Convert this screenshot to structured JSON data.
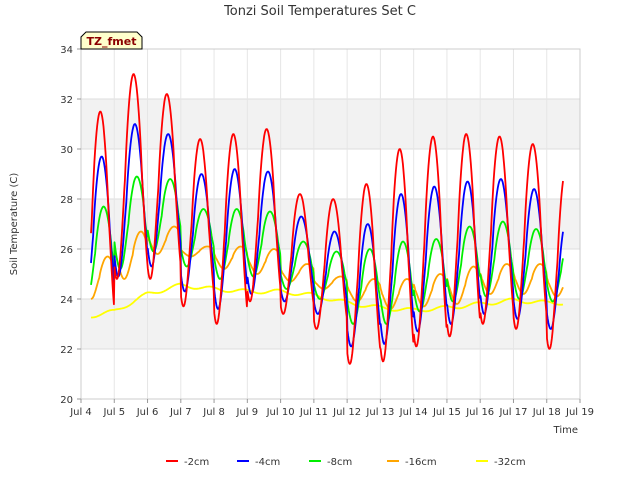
{
  "chart_data": {
    "type": "line",
    "title": "Tonzi Soil Temperatures Set C",
    "xlabel": "Time",
    "ylabel": "Soil Temperature (C)",
    "badge": "TZ_fmet",
    "xlim": [
      4,
      19
    ],
    "ylim": [
      20,
      34
    ],
    "x_ticks": [
      4,
      5,
      6,
      7,
      8,
      9,
      10,
      11,
      12,
      13,
      14,
      15,
      16,
      17,
      18,
      19
    ],
    "x_tick_labels": [
      "Jul 4",
      "Jul 5",
      "Jul 6",
      "Jul 7",
      "Jul 8",
      "Jul 9",
      "Jul 10",
      "Jul 11",
      "Jul 12",
      "Jul 13",
      "Jul 14",
      "Jul 15",
      "Jul 16",
      "Jul 17",
      "Jul 18",
      "Jul 19"
    ],
    "y_ticks": [
      20,
      22,
      24,
      26,
      28,
      30,
      32,
      34
    ],
    "y_tick_labels": [
      "20",
      "22",
      "24",
      "26",
      "28",
      "30",
      "32",
      "34"
    ],
    "grid": true,
    "legend_position": "bottom",
    "series": [
      {
        "name": "-2cm",
        "color": "#ff0000",
        "daily_max": [
          31.5,
          33.0,
          32.2,
          30.4,
          30.6,
          30.8,
          28.2,
          28.0,
          28.6,
          30.0,
          30.5,
          30.6,
          30.5,
          30.2,
          29.2
        ],
        "daily_min": [
          23.0,
          24.8,
          24.8,
          23.7,
          23.0,
          23.9,
          23.4,
          22.8,
          21.4,
          21.5,
          22.1,
          22.5,
          23.0,
          22.8,
          22.0
        ],
        "phase": 0.58,
        "start": 4.3,
        "end": 18.5
      },
      {
        "name": "-4cm",
        "color": "#0000ff",
        "daily_max": [
          29.7,
          31.0,
          30.6,
          29.0,
          29.2,
          29.1,
          27.3,
          26.7,
          27.0,
          28.2,
          28.5,
          28.7,
          28.8,
          28.4,
          27.3
        ],
        "daily_min": [
          23.5,
          24.9,
          25.3,
          24.3,
          23.6,
          24.2,
          23.9,
          23.4,
          22.1,
          22.2,
          22.7,
          23.0,
          23.4,
          23.2,
          22.8
        ],
        "phase": 0.62,
        "start": 4.3,
        "end": 18.5
      },
      {
        "name": "-8cm",
        "color": "#00ee00",
        "daily_max": [
          27.7,
          28.9,
          28.8,
          27.6,
          27.6,
          27.5,
          26.3,
          25.9,
          26.0,
          26.3,
          26.4,
          26.9,
          27.1,
          26.8,
          26.3
        ],
        "daily_min": [
          24.0,
          25.2,
          25.9,
          25.3,
          24.8,
          24.9,
          24.4,
          24.0,
          23.0,
          23.0,
          23.5,
          23.9,
          24.1,
          24.0,
          23.9
        ],
        "phase": 0.68,
        "start": 4.3,
        "end": 18.5
      },
      {
        "name": "-16cm",
        "color": "#ffa500",
        "daily_max": [
          25.7,
          26.7,
          26.9,
          26.1,
          26.1,
          26.0,
          25.4,
          24.9,
          24.8,
          24.8,
          25.0,
          25.3,
          25.4,
          25.4,
          25.2
        ],
        "daily_min": [
          24.0,
          24.8,
          25.8,
          25.7,
          25.2,
          25.0,
          24.7,
          24.4,
          23.9,
          23.6,
          23.7,
          23.8,
          24.2,
          24.2,
          24.1
        ],
        "phase": 0.8,
        "start": 4.3,
        "end": 18.5
      },
      {
        "name": "-32cm",
        "color": "#ffff00",
        "daily_mean": [
          23.25,
          23.5,
          24.2,
          24.55,
          24.4,
          24.3,
          24.3,
          24.15,
          23.85,
          23.65,
          23.55,
          23.65,
          23.8,
          23.95,
          23.85
        ],
        "amplitude": 0.08,
        "phase": 0.9,
        "start": 4.3,
        "end": 18.5
      }
    ]
  }
}
